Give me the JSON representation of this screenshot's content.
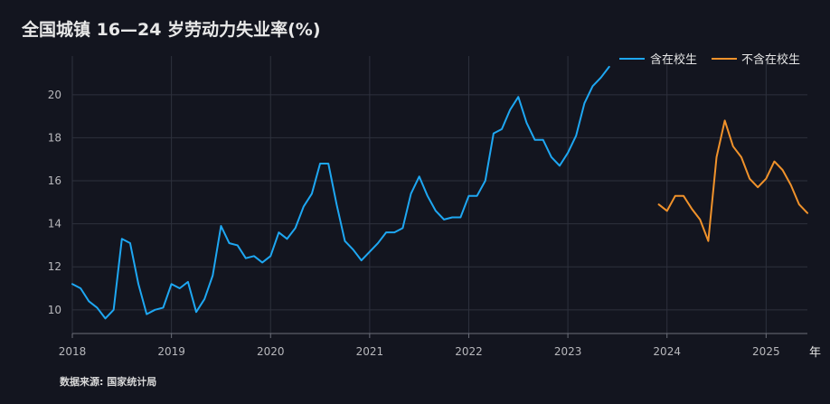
{
  "title": "全国城镇 16—24 岁劳动力失业率(%)",
  "source": "数据来源: 国家统计局",
  "chart_data": {
    "type": "line",
    "title": "全国城镇 16—24 岁劳动力失业率(%)",
    "x_unit": "年",
    "x_ticks": [
      "2018",
      "2019",
      "2020",
      "2021",
      "2022",
      "2023",
      "2024",
      "2025"
    ],
    "xlim": [
      "2018-01",
      "2025-06"
    ],
    "y_ticks": [
      10,
      12,
      14,
      16,
      18,
      20
    ],
    "ylim": [
      8.9,
      21.8
    ],
    "grid": true,
    "legend_position": "top-right",
    "series": [
      {
        "name": "含在校生",
        "color": "#1ea7f2",
        "points": [
          [
            "2018-01",
            11.2
          ],
          [
            "2018-02",
            11.0
          ],
          [
            "2018-03",
            10.4
          ],
          [
            "2018-04",
            10.1
          ],
          [
            "2018-05",
            9.6
          ],
          [
            "2018-06",
            10.0
          ],
          [
            "2018-07",
            13.3
          ],
          [
            "2018-08",
            13.1
          ],
          [
            "2018-09",
            11.2
          ],
          [
            "2018-10",
            9.8
          ],
          [
            "2018-11",
            10.0
          ],
          [
            "2018-12",
            10.1
          ],
          [
            "2019-01",
            11.2
          ],
          [
            "2019-02",
            11.0
          ],
          [
            "2019-03",
            11.3
          ],
          [
            "2019-04",
            9.9
          ],
          [
            "2019-05",
            10.5
          ],
          [
            "2019-06",
            11.6
          ],
          [
            "2019-07",
            13.9
          ],
          [
            "2019-08",
            13.1
          ],
          [
            "2019-09",
            13.0
          ],
          [
            "2019-10",
            12.4
          ],
          [
            "2019-11",
            12.5
          ],
          [
            "2019-12",
            12.2
          ],
          [
            "2020-01",
            12.5
          ],
          [
            "2020-02",
            13.6
          ],
          [
            "2020-03",
            13.3
          ],
          [
            "2020-04",
            13.8
          ],
          [
            "2020-05",
            14.8
          ],
          [
            "2020-06",
            15.4
          ],
          [
            "2020-07",
            16.8
          ],
          [
            "2020-08",
            16.8
          ],
          [
            "2020-09",
            14.9
          ],
          [
            "2020-10",
            13.2
          ],
          [
            "2020-11",
            12.8
          ],
          [
            "2020-12",
            12.3
          ],
          [
            "2021-01",
            12.7
          ],
          [
            "2021-02",
            13.1
          ],
          [
            "2021-03",
            13.6
          ],
          [
            "2021-04",
            13.6
          ],
          [
            "2021-05",
            13.8
          ],
          [
            "2021-06",
            15.4
          ],
          [
            "2021-07",
            16.2
          ],
          [
            "2021-08",
            15.3
          ],
          [
            "2021-09",
            14.6
          ],
          [
            "2021-10",
            14.2
          ],
          [
            "2021-11",
            14.3
          ],
          [
            "2021-12",
            14.3
          ],
          [
            "2022-01",
            15.3
          ],
          [
            "2022-02",
            15.3
          ],
          [
            "2022-03",
            16.0
          ],
          [
            "2022-04",
            18.2
          ],
          [
            "2022-05",
            18.4
          ],
          [
            "2022-06",
            19.3
          ],
          [
            "2022-07",
            19.9
          ],
          [
            "2022-08",
            18.7
          ],
          [
            "2022-09",
            17.9
          ],
          [
            "2022-10",
            17.9
          ],
          [
            "2022-11",
            17.1
          ],
          [
            "2022-12",
            16.7
          ],
          [
            "2023-01",
            17.3
          ],
          [
            "2023-02",
            18.1
          ],
          [
            "2023-03",
            19.6
          ],
          [
            "2023-04",
            20.4
          ],
          [
            "2023-05",
            20.8
          ],
          [
            "2023-06",
            21.3
          ]
        ]
      },
      {
        "name": "不含在校生",
        "color": "#f0922b",
        "points": [
          [
            "2023-12",
            14.9
          ],
          [
            "2024-01",
            14.6
          ],
          [
            "2024-02",
            15.3
          ],
          [
            "2024-03",
            15.3
          ],
          [
            "2024-04",
            14.7
          ],
          [
            "2024-05",
            14.2
          ],
          [
            "2024-06",
            13.2
          ],
          [
            "2024-07",
            17.1
          ],
          [
            "2024-08",
            18.8
          ],
          [
            "2024-09",
            17.6
          ],
          [
            "2024-10",
            17.1
          ],
          [
            "2024-11",
            16.1
          ],
          [
            "2024-12",
            15.7
          ],
          [
            "2025-01",
            16.1
          ],
          [
            "2025-02",
            16.9
          ],
          [
            "2025-03",
            16.5
          ],
          [
            "2025-04",
            15.8
          ],
          [
            "2025-05",
            14.9
          ],
          [
            "2025-06",
            14.5
          ]
        ]
      }
    ]
  }
}
